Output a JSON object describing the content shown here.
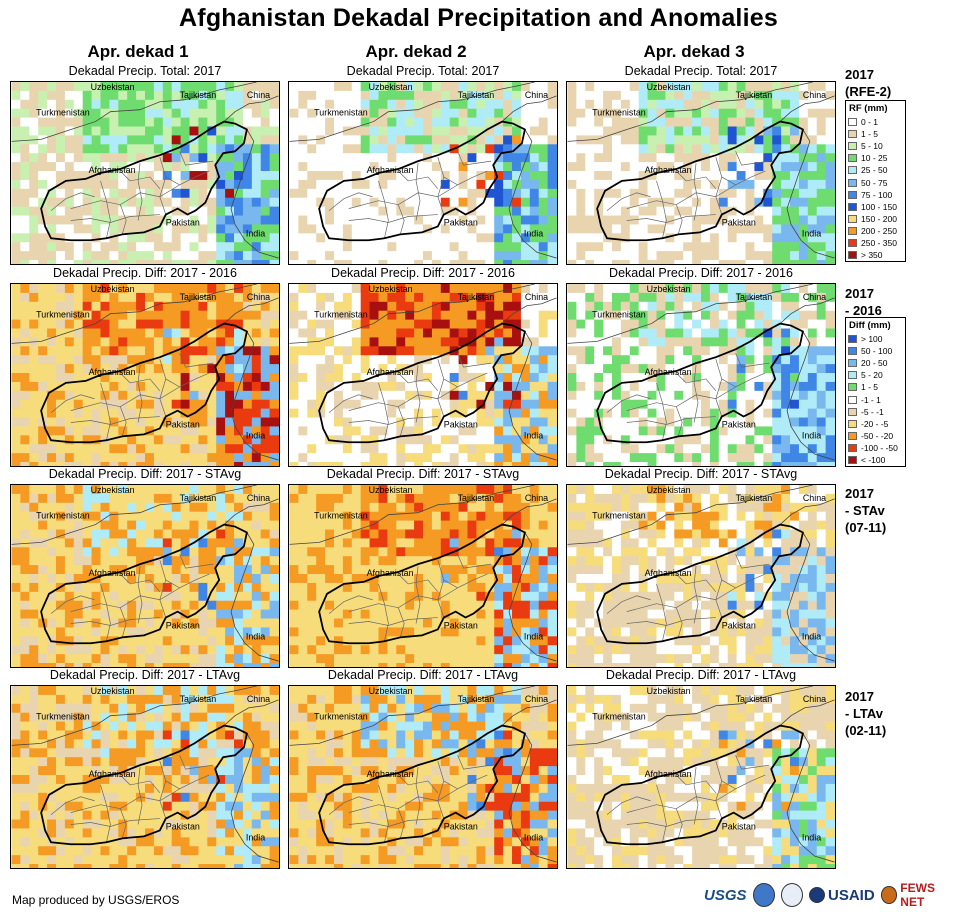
{
  "title": "Afghanistan Dekadal Precipitation and Anomalies",
  "columns": [
    "Apr. dekad 1",
    "Apr. dekad 2",
    "Apr. dekad 3"
  ],
  "rows": [
    {
      "panel_label": "Dekadal Precip. Total: 2017",
      "side_label": [
        "2017",
        "(RFE-2)"
      ]
    },
    {
      "panel_label": "Dekadal Precip. Diff: 2017 - 2016",
      "side_label": [
        "2017",
        "- 2016"
      ]
    },
    {
      "panel_label": "Dekadal Precip. Diff: 2017 - STAvg",
      "side_label": [
        "2017",
        "- STAv",
        "(07-11)"
      ]
    },
    {
      "panel_label": "Dekadal Precip. Diff: 2017 - LTAvg",
      "side_label": [
        "2017",
        "- LTAv",
        "(02-11)"
      ]
    }
  ],
  "map_labels": {
    "uzbekistan": "Uzbekistan",
    "tajikistan": "Tajikistan",
    "china": "China",
    "turkmenistan": "Turkmenistan",
    "afghanistan": "Afghanistan",
    "pakistan": "Pakistan",
    "india": "India"
  },
  "legend_rf": {
    "title": "RF (mm)",
    "items": [
      {
        "label": "0 - 1",
        "color": "#ffffff"
      },
      {
        "label": "1 - 5",
        "color": "#e8d5b0"
      },
      {
        "label": "5 - 10",
        "color": "#c8f0b0"
      },
      {
        "label": "10 - 25",
        "color": "#6fdc6f"
      },
      {
        "label": "25 - 50",
        "color": "#b0ecf8"
      },
      {
        "label": "50 - 75",
        "color": "#79b8ee"
      },
      {
        "label": "75 - 100",
        "color": "#3f86e6"
      },
      {
        "label": "100 - 150",
        "color": "#1f55d2"
      },
      {
        "label": "150 - 200",
        "color": "#f6dc7a"
      },
      {
        "label": "200 - 250",
        "color": "#f59a23"
      },
      {
        "label": "250 - 350",
        "color": "#ea3a10"
      },
      {
        "label": "> 350",
        "color": "#a81010"
      }
    ]
  },
  "legend_diff": {
    "title": "Diff (mm)",
    "items": [
      {
        "label": "> 100",
        "color": "#1f55d2"
      },
      {
        "label": "50 - 100",
        "color": "#3f86e6"
      },
      {
        "label": "20 - 50",
        "color": "#79b8ee"
      },
      {
        "label": "5 - 20",
        "color": "#b0ecf8"
      },
      {
        "label": "1 - 5",
        "color": "#6fdc6f"
      },
      {
        "label": "-1 - 1",
        "color": "#ffffff"
      },
      {
        "label": "-5 - -1",
        "color": "#e8d5b0"
      },
      {
        "label": "-20 - -5",
        "color": "#f6dc7a"
      },
      {
        "label": "-50 - -20",
        "color": "#f59a23"
      },
      {
        "label": "-100 - -50",
        "color": "#ea3a10"
      },
      {
        "label": "< -100",
        "color": "#a81010"
      }
    ]
  },
  "footer": "Map produced by USGS/EROS",
  "logos": [
    "USGS",
    "USAID",
    "FEWS NET"
  ]
}
